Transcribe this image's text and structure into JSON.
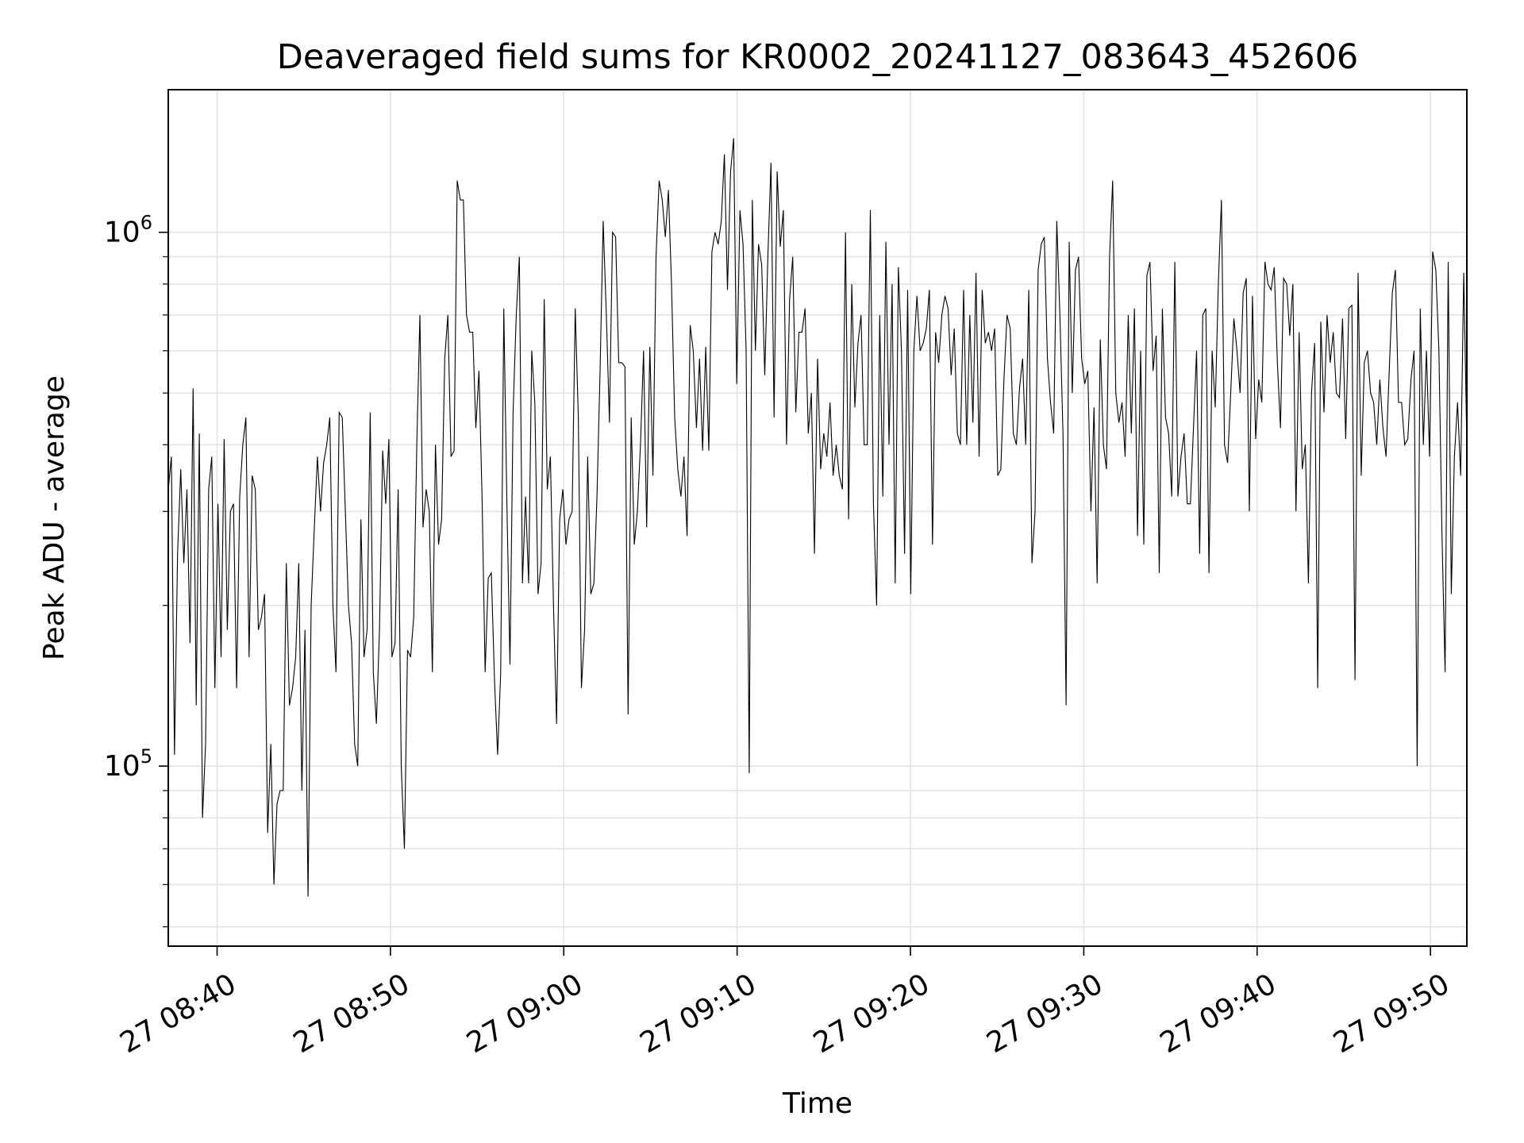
{
  "chart_data": {
    "type": "line",
    "title": "Deaveraged field sums for KR0002_20241127_083643_452606",
    "xlabel": "Time",
    "ylabel": "Peak ADU - average",
    "yscale": "log",
    "grid": true,
    "line_color": "#000000",
    "x_ticks": [
      "27 08:40",
      "27 08:50",
      "27 09:00",
      "27 09:10",
      "27 09:20",
      "27 09:30",
      "27 09:40",
      "27 09:50"
    ],
    "x_range": [
      "2024-11-27 08:37:11",
      "2024-11-27 09:52:06"
    ],
    "y_ticks": [
      {
        "base": "10",
        "exp": "5",
        "value": 100000
      },
      {
        "base": "10",
        "exp": "6",
        "value": 1000000
      }
    ],
    "ylim": [
      46000,
      1850000
    ],
    "series": [
      {
        "x_start": "2024-11-27 08:37:11",
        "x_end": "2024-11-27 09:52:06",
        "values": [
          330000,
          380000,
          105000,
          250000,
          360000,
          240000,
          330000,
          170000,
          510000,
          130000,
          420000,
          80000,
          110000,
          330000,
          380000,
          140000,
          310000,
          160000,
          410000,
          180000,
          300000,
          310000,
          140000,
          320000,
          400000,
          450000,
          160000,
          350000,
          330000,
          180000,
          190000,
          210000,
          75000,
          110000,
          60000,
          85000,
          90000,
          90000,
          240000,
          130000,
          140000,
          160000,
          240000,
          90000,
          180000,
          57000,
          200000,
          280000,
          380000,
          300000,
          370000,
          400000,
          450000,
          200000,
          150000,
          460000,
          450000,
          300000,
          200000,
          170000,
          110000,
          100000,
          290000,
          160000,
          180000,
          460000,
          150000,
          120000,
          180000,
          390000,
          310000,
          410000,
          160000,
          170000,
          330000,
          100000,
          70000,
          165000,
          160000,
          190000,
          400000,
          700000,
          280000,
          330000,
          300000,
          150000,
          400000,
          260000,
          290000,
          580000,
          700000,
          380000,
          390000,
          1250000,
          1150000,
          1150000,
          700000,
          650000,
          650000,
          430000,
          550000,
          320000,
          150000,
          225000,
          230000,
          145000,
          105000,
          150000,
          720000,
          310000,
          155000,
          460000,
          700000,
          900000,
          220000,
          320000,
          220000,
          600000,
          480000,
          210000,
          240000,
          750000,
          330000,
          380000,
          200000,
          120000,
          290000,
          330000,
          260000,
          290000,
          300000,
          720000,
          450000,
          140000,
          180000,
          380000,
          210000,
          220000,
          320000,
          550000,
          1050000,
          700000,
          440000,
          1000000,
          980000,
          570000,
          570000,
          560000,
          125000,
          450000,
          260000,
          300000,
          400000,
          600000,
          280000,
          610000,
          350000,
          900000,
          1250000,
          1150000,
          980000,
          1200000,
          800000,
          450000,
          360000,
          320000,
          380000,
          270000,
          670000,
          600000,
          430000,
          580000,
          390000,
          610000,
          390000,
          920000,
          1000000,
          950000,
          1050000,
          1400000,
          780000,
          1300000,
          1500000,
          520000,
          1100000,
          950000,
          600000,
          97000,
          1150000,
          600000,
          950000,
          870000,
          540000,
          900000,
          1350000,
          450000,
          1300000,
          940000,
          1100000,
          400000,
          750000,
          900000,
          460000,
          650000,
          650000,
          720000,
          420000,
          500000,
          250000,
          580000,
          360000,
          420000,
          380000,
          480000,
          350000,
          400000,
          350000,
          330000,
          1000000,
          290000,
          800000,
          470000,
          620000,
          700000,
          400000,
          400000,
          1100000,
          310000,
          200000,
          700000,
          320000,
          960000,
          400000,
          800000,
          220000,
          860000,
          600000,
          250000,
          780000,
          210000,
          600000,
          760000,
          600000,
          620000,
          660000,
          780000,
          260000,
          650000,
          570000,
          700000,
          760000,
          720000,
          540000,
          660000,
          420000,
          400000,
          780000,
          400000,
          700000,
          440000,
          840000,
          380000,
          780000,
          620000,
          650000,
          600000,
          660000,
          350000,
          360000,
          530000,
          700000,
          660000,
          420000,
          400000,
          510000,
          580000,
          400000,
          780000,
          240000,
          300000,
          850000,
          950000,
          980000,
          580000,
          480000,
          420000,
          1050000,
          700000,
          420000,
          130000,
          960000,
          500000,
          850000,
          900000,
          580000,
          520000,
          550000,
          300000,
          470000,
          220000,
          630000,
          400000,
          360000,
          900000,
          1250000,
          500000,
          440000,
          480000,
          380000,
          700000,
          420000,
          720000,
          270000,
          600000,
          260000,
          830000,
          880000,
          550000,
          640000,
          230000,
          720000,
          450000,
          420000,
          320000,
          880000,
          320000,
          380000,
          420000,
          310000,
          310000,
          430000,
          600000,
          250000,
          700000,
          720000,
          230000,
          600000,
          470000,
          800000,
          1150000,
          400000,
          370000,
          500000,
          690000,
          600000,
          500000,
          770000,
          820000,
          300000,
          760000,
          410000,
          530000,
          480000,
          880000,
          800000,
          780000,
          860000,
          570000,
          430000,
          820000,
          800000,
          640000,
          800000,
          300000,
          650000,
          360000,
          400000,
          220000,
          500000,
          620000,
          140000,
          680000,
          460000,
          700000,
          570000,
          650000,
          500000,
          490000,
          690000,
          410000,
          720000,
          730000,
          145000,
          840000,
          350000,
          570000,
          600000,
          500000,
          480000,
          400000,
          530000,
          430000,
          380000,
          550000,
          770000,
          850000,
          480000,
          480000,
          400000,
          410000,
          530000,
          600000,
          100000,
          720000,
          400000,
          600000,
          380000,
          920000,
          850000,
          600000,
          270000,
          150000,
          880000,
          210000,
          380000,
          480000,
          350000,
          840000,
          400000
        ]
      }
    ]
  }
}
